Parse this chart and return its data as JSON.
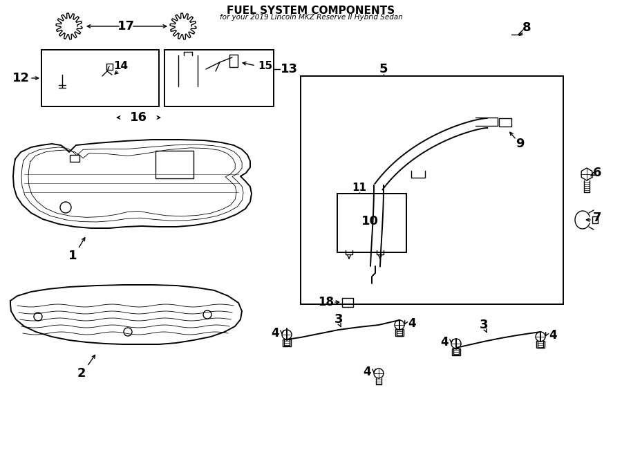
{
  "title": "FUEL SYSTEM COMPONENTS",
  "subtitle": "for your 2019 Lincoln MKZ Reserve II Hybrid Sedan",
  "bg_color": "#ffffff",
  "line_color": "#000000",
  "lw": 1.0,
  "lw2": 1.4,
  "lw3": 1.8
}
